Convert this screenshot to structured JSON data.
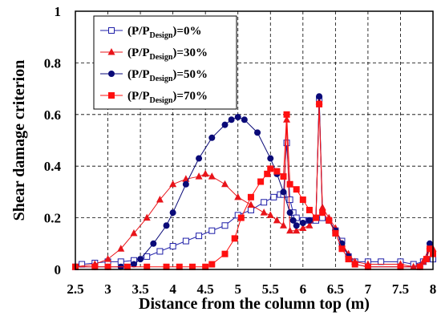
{
  "chart_data": {
    "type": "line",
    "xlabel": "Distance from the column top (m)",
    "ylabel": "Shear damage criterion",
    "xlim": [
      2.5,
      8.0
    ],
    "ylim": [
      0,
      1.0
    ],
    "x_ticks": [
      "2.5",
      "3",
      "3.5",
      "4",
      "4.5",
      "5",
      "5.5",
      "6",
      "6.5",
      "7",
      "7.5",
      "8"
    ],
    "y_ticks": [
      "0",
      "0.2",
      "0.4",
      "0.6",
      "0.8",
      "1"
    ],
    "grid": "dashed",
    "legend_position": "top-left",
    "legend": [
      {
        "prefix": "(P/P",
        "sub": "Design",
        "suffix": ")=0%"
      },
      {
        "prefix": "(P/P",
        "sub": "Design",
        "suffix": ")=30%"
      },
      {
        "prefix": "(P/P",
        "sub": "Design",
        "suffix": ")=50%"
      },
      {
        "prefix": "(P/P",
        "sub": "Design",
        "suffix": ")=70%"
      }
    ],
    "series": [
      {
        "name": "(P/PDesign)=0%",
        "color": "#1f1fa8",
        "marker": "square-open",
        "points": [
          [
            2.5,
            0.01
          ],
          [
            2.6,
            0.02
          ],
          [
            2.8,
            0.025
          ],
          [
            3.0,
            0.03
          ],
          [
            3.2,
            0.03
          ],
          [
            3.4,
            0.035
          ],
          [
            3.6,
            0.05
          ],
          [
            3.8,
            0.07
          ],
          [
            4.0,
            0.09
          ],
          [
            4.2,
            0.11
          ],
          [
            4.4,
            0.13
          ],
          [
            4.6,
            0.15
          ],
          [
            4.8,
            0.17
          ],
          [
            5.0,
            0.21
          ],
          [
            5.2,
            0.23
          ],
          [
            5.4,
            0.26
          ],
          [
            5.55,
            0.28
          ],
          [
            5.65,
            0.29
          ],
          [
            5.7,
            0.29
          ],
          [
            5.75,
            0.49
          ],
          [
            5.8,
            0.27
          ],
          [
            5.85,
            0.22
          ],
          [
            5.9,
            0.2
          ],
          [
            6.0,
            0.19
          ],
          [
            6.1,
            0.19
          ],
          [
            6.2,
            0.19
          ],
          [
            6.25,
            0.66
          ],
          [
            6.3,
            0.2
          ],
          [
            6.4,
            0.19
          ],
          [
            6.5,
            0.15
          ],
          [
            6.6,
            0.11
          ],
          [
            6.7,
            0.05
          ],
          [
            6.8,
            0.03
          ],
          [
            7.0,
            0.03
          ],
          [
            7.2,
            0.03
          ],
          [
            7.5,
            0.03
          ],
          [
            7.7,
            0.02
          ],
          [
            7.85,
            0.03
          ],
          [
            7.95,
            0.06
          ],
          [
            8.0,
            0.04
          ]
        ]
      },
      {
        "name": "(P/PDesign)=30%",
        "color": "#e8141a",
        "marker": "triangle",
        "points": [
          [
            2.5,
            0.01
          ],
          [
            2.8,
            0.02
          ],
          [
            3.0,
            0.04
          ],
          [
            3.2,
            0.08
          ],
          [
            3.4,
            0.14
          ],
          [
            3.6,
            0.2
          ],
          [
            3.8,
            0.27
          ],
          [
            4.0,
            0.33
          ],
          [
            4.2,
            0.35
          ],
          [
            4.4,
            0.36
          ],
          [
            4.5,
            0.37
          ],
          [
            4.6,
            0.36
          ],
          [
            4.8,
            0.33
          ],
          [
            5.0,
            0.28
          ],
          [
            5.2,
            0.25
          ],
          [
            5.4,
            0.22
          ],
          [
            5.5,
            0.21
          ],
          [
            5.6,
            0.19
          ],
          [
            5.7,
            0.17
          ],
          [
            5.75,
            0.58
          ],
          [
            5.8,
            0.15
          ],
          [
            5.9,
            0.15
          ],
          [
            6.0,
            0.16
          ],
          [
            6.1,
            0.17
          ],
          [
            6.2,
            0.2
          ],
          [
            6.25,
            0.65
          ],
          [
            6.3,
            0.24
          ],
          [
            6.4,
            0.2
          ],
          [
            6.5,
            0.16
          ],
          [
            6.6,
            0.1
          ],
          [
            6.7,
            0.06
          ],
          [
            6.8,
            0.03
          ],
          [
            7.0,
            0.02
          ],
          [
            7.5,
            0.02
          ],
          [
            7.7,
            0.01
          ],
          [
            7.85,
            0.03
          ],
          [
            7.95,
            0.09
          ],
          [
            8.0,
            0.08
          ]
        ]
      },
      {
        "name": "(P/PDesign)=50%",
        "color": "#0a0a78",
        "marker": "circle",
        "points": [
          [
            2.5,
            0.01
          ],
          [
            2.8,
            0.01
          ],
          [
            3.0,
            0.01
          ],
          [
            3.2,
            0.01
          ],
          [
            3.4,
            0.02
          ],
          [
            3.5,
            0.04
          ],
          [
            3.7,
            0.1
          ],
          [
            3.9,
            0.17
          ],
          [
            4.0,
            0.22
          ],
          [
            4.2,
            0.33
          ],
          [
            4.4,
            0.43
          ],
          [
            4.6,
            0.51
          ],
          [
            4.8,
            0.56
          ],
          [
            4.9,
            0.58
          ],
          [
            5.0,
            0.59
          ],
          [
            5.1,
            0.58
          ],
          [
            5.3,
            0.53
          ],
          [
            5.5,
            0.43
          ],
          [
            5.6,
            0.37
          ],
          [
            5.7,
            0.3
          ],
          [
            5.8,
            0.22
          ],
          [
            5.85,
            0.19
          ],
          [
            5.9,
            0.17
          ],
          [
            6.0,
            0.18
          ],
          [
            6.1,
            0.19
          ],
          [
            6.2,
            0.2
          ],
          [
            6.25,
            0.67
          ],
          [
            6.3,
            0.22
          ],
          [
            6.4,
            0.19
          ],
          [
            6.5,
            0.15
          ],
          [
            6.6,
            0.1
          ],
          [
            6.7,
            0.05
          ],
          [
            6.8,
            0.02
          ],
          [
            7.0,
            0.01
          ],
          [
            7.5,
            0.01
          ],
          [
            7.8,
            0.01
          ],
          [
            7.9,
            0.04
          ],
          [
            7.95,
            0.1
          ],
          [
            8.0,
            0.06
          ]
        ]
      },
      {
        "name": "(P/PDesign)=70%",
        "color": "#ff1010",
        "marker": "square",
        "points": [
          [
            2.5,
            0.01
          ],
          [
            2.8,
            0.01
          ],
          [
            3.0,
            0.01
          ],
          [
            3.3,
            0.01
          ],
          [
            3.6,
            0.01
          ],
          [
            3.9,
            0.01
          ],
          [
            4.1,
            0.01
          ],
          [
            4.3,
            0.01
          ],
          [
            4.5,
            0.01
          ],
          [
            4.6,
            0.02
          ],
          [
            4.8,
            0.06
          ],
          [
            4.95,
            0.12
          ],
          [
            5.05,
            0.2
          ],
          [
            5.2,
            0.28
          ],
          [
            5.35,
            0.34
          ],
          [
            5.45,
            0.37
          ],
          [
            5.5,
            0.39
          ],
          [
            5.6,
            0.38
          ],
          [
            5.7,
            0.36
          ],
          [
            5.75,
            0.6
          ],
          [
            5.8,
            0.33
          ],
          [
            5.9,
            0.31
          ],
          [
            6.0,
            0.27
          ],
          [
            6.1,
            0.23
          ],
          [
            6.2,
            0.2
          ],
          [
            6.25,
            0.64
          ],
          [
            6.3,
            0.22
          ],
          [
            6.4,
            0.19
          ],
          [
            6.5,
            0.14
          ],
          [
            6.6,
            0.08
          ],
          [
            6.7,
            0.04
          ],
          [
            6.8,
            0.02
          ],
          [
            7.0,
            0.01
          ],
          [
            7.5,
            0.01
          ],
          [
            7.8,
            0.01
          ],
          [
            7.9,
            0.04
          ],
          [
            7.95,
            0.08
          ],
          [
            8.0,
            0.06
          ]
        ]
      }
    ]
  }
}
